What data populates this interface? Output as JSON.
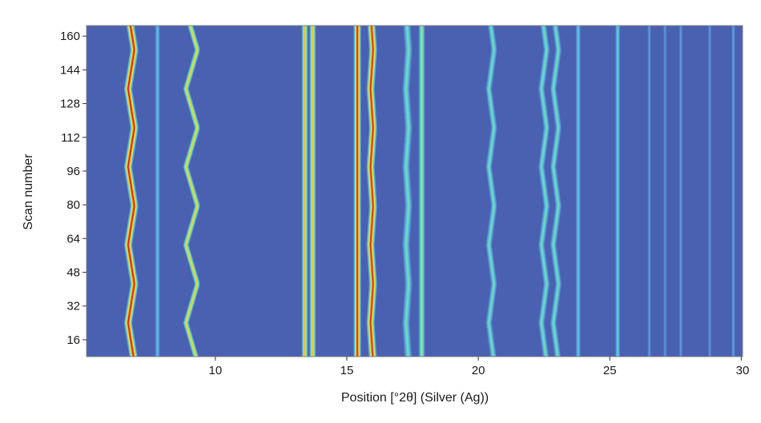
{
  "chart_data": {
    "type": "heatmap",
    "title": "",
    "xlabel": "Position [°2θ] (Silver (Ag))",
    "ylabel": "Scan number",
    "xlim": [
      5.1,
      30.05
    ],
    "ylim": [
      8,
      165
    ],
    "x_ticks": [
      {
        "value": 10,
        "label": "10"
      },
      {
        "value": 15,
        "label": "15"
      },
      {
        "value": 20,
        "label": "20"
      },
      {
        "value": 25,
        "label": "25"
      },
      {
        "value": 30,
        "label": "30"
      }
    ],
    "y_ticks": [
      {
        "value": 16,
        "label": "16"
      },
      {
        "value": 32,
        "label": "32"
      },
      {
        "value": 48,
        "label": "48"
      },
      {
        "value": 64,
        "label": "64"
      },
      {
        "value": 80,
        "label": "80"
      },
      {
        "value": 96,
        "label": "96"
      },
      {
        "value": 112,
        "label": "112"
      },
      {
        "value": 128,
        "label": "128"
      },
      {
        "value": 144,
        "label": "144"
      },
      {
        "value": 160,
        "label": "160"
      }
    ],
    "grid": false,
    "legend": "none",
    "colormap": [
      "#4a5fb0",
      "#5d8fd8",
      "#4fc8dc",
      "#8be0a0",
      "#e8e830",
      "#f0a020",
      "#e02020"
    ],
    "background_color": "#4a60b0",
    "features": [
      {
        "name": "peak-6.8",
        "center": 6.8,
        "width": 0.13,
        "intensity": 1.0,
        "amp": 0.12,
        "period": 37,
        "phase": 24
      },
      {
        "name": "peak-7.8",
        "center": 7.8,
        "width": 0.08,
        "intensity": 0.32,
        "amp": 0,
        "period": 37,
        "phase": 24
      },
      {
        "name": "peak-9.1",
        "center": 9.1,
        "width": 0.09,
        "intensity": 0.72,
        "amp": 0.22,
        "period": 37,
        "phase": 24
      },
      {
        "name": "peak-13.4",
        "center": 13.4,
        "width": 0.1,
        "intensity": 0.78,
        "amp": 0,
        "period": 37,
        "phase": 24
      },
      {
        "name": "peak-13.7",
        "center": 13.7,
        "width": 0.1,
        "intensity": 0.78,
        "amp": 0,
        "period": 37,
        "phase": 24
      },
      {
        "name": "peak-15.4",
        "center": 15.4,
        "width": 0.12,
        "intensity": 1.0,
        "amp": 0,
        "period": 37,
        "phase": 24
      },
      {
        "name": "peak-15.95",
        "center": 15.95,
        "width": 0.13,
        "intensity": 0.98,
        "amp": 0.05,
        "period": 37,
        "phase": 24
      },
      {
        "name": "peak-17.3",
        "center": 17.3,
        "width": 0.12,
        "intensity": 0.45,
        "amp": 0.05,
        "period": 37,
        "phase": 24
      },
      {
        "name": "peak-17.85",
        "center": 17.85,
        "width": 0.1,
        "intensity": 0.55,
        "amp": 0,
        "period": 37,
        "phase": 24
      },
      {
        "name": "peak-20.5",
        "center": 20.5,
        "width": 0.1,
        "intensity": 0.45,
        "amp": 0.1,
        "period": 37,
        "phase": 24
      },
      {
        "name": "peak-22.5",
        "center": 22.5,
        "width": 0.1,
        "intensity": 0.45,
        "amp": 0.1,
        "period": 37,
        "phase": 24
      },
      {
        "name": "peak-22.95",
        "center": 22.95,
        "width": 0.1,
        "intensity": 0.45,
        "amp": 0.1,
        "period": 37,
        "phase": 24
      },
      {
        "name": "peak-23.8",
        "center": 23.8,
        "width": 0.08,
        "intensity": 0.35,
        "amp": 0,
        "period": 37,
        "phase": 24
      },
      {
        "name": "peak-25.3",
        "center": 25.3,
        "width": 0.08,
        "intensity": 0.38,
        "amp": 0,
        "period": 37,
        "phase": 24
      },
      {
        "name": "peak-26.5",
        "center": 26.5,
        "width": 0.06,
        "intensity": 0.2,
        "amp": 0,
        "period": 37,
        "phase": 24
      },
      {
        "name": "peak-27.1",
        "center": 27.1,
        "width": 0.06,
        "intensity": 0.18,
        "amp": 0,
        "period": 37,
        "phase": 24
      },
      {
        "name": "peak-27.7",
        "center": 27.7,
        "width": 0.06,
        "intensity": 0.2,
        "amp": 0,
        "period": 37,
        "phase": 24
      },
      {
        "name": "peak-28.8",
        "center": 28.8,
        "width": 0.06,
        "intensity": 0.18,
        "amp": 0,
        "period": 37,
        "phase": 24
      },
      {
        "name": "peak-29.7",
        "center": 29.7,
        "width": 0.06,
        "intensity": 0.22,
        "amp": 0,
        "period": 37,
        "phase": 24
      }
    ]
  }
}
